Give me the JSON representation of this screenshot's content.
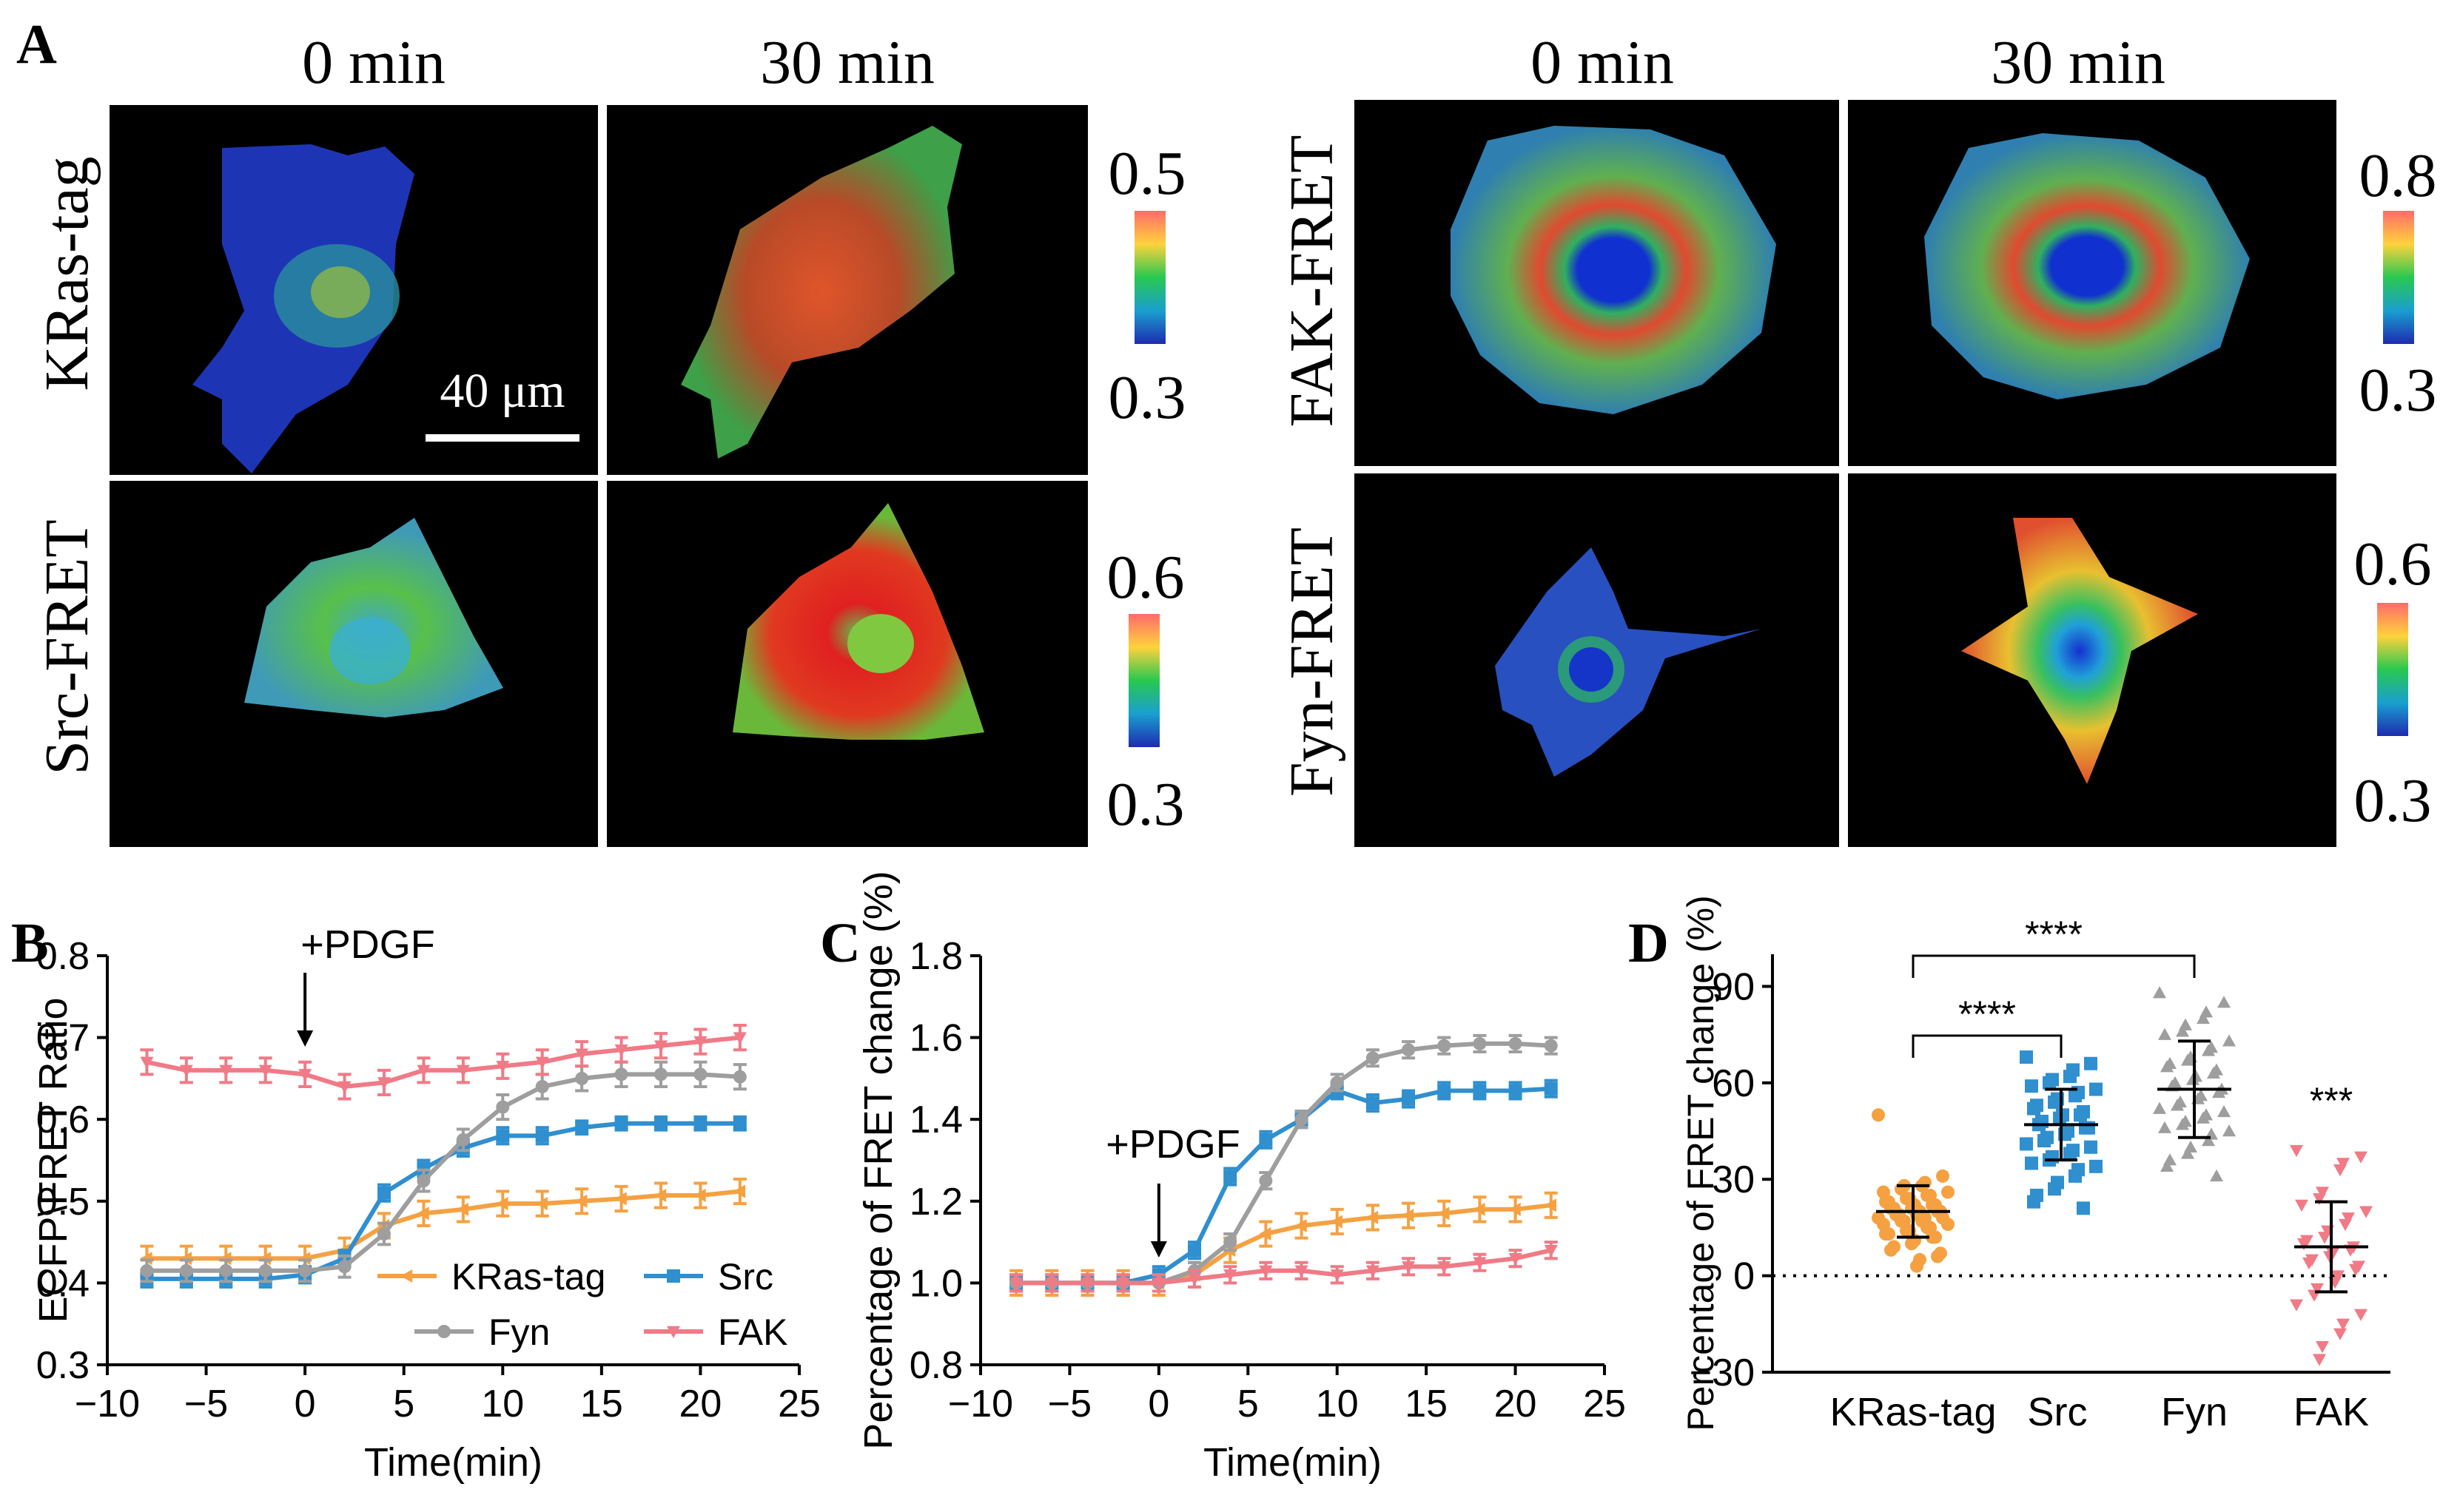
{
  "panel_labels": {
    "a": "A",
    "b": "B",
    "c": "C",
    "d": "D"
  },
  "panel_a": {
    "left_group": {
      "time_labels": [
        "0 min",
        "30 min"
      ],
      "rows": [
        {
          "label": "KRas-tag",
          "scale_max": "0.5",
          "scale_min": "0.3"
        },
        {
          "label": "Src-FRET",
          "scale_max": "0.6",
          "scale_min": "0.3"
        }
      ],
      "scale_bar_label": "40 μm"
    },
    "right_group": {
      "time_labels": [
        "0 min",
        "30 min"
      ],
      "rows": [
        {
          "label": "FAK-FRET",
          "scale_max": "0.8",
          "scale_min": "0.3"
        },
        {
          "label": "Fyn-FRET",
          "scale_max": "0.6",
          "scale_min": "0.3"
        }
      ]
    },
    "colormap": [
      "#ff6b6b",
      "#ffd23c",
      "#28c850",
      "#1a9fd0",
      "#1d2bb0"
    ]
  },
  "chart_data": [
    {
      "id": "B",
      "type": "line",
      "title": "",
      "xlabel": "Time(min)",
      "ylabel": "ECFP\\FRET Ratio",
      "xlim": [
        -10,
        25
      ],
      "ylim": [
        0.3,
        0.8
      ],
      "xticks": [
        -10,
        -5,
        0,
        5,
        10,
        15,
        20,
        25
      ],
      "xtick_labels": [
        "−10",
        "−5",
        "0",
        "5",
        "10",
        "15",
        "20",
        "25"
      ],
      "yticks": [
        0.3,
        0.4,
        0.5,
        0.6,
        0.7,
        0.8
      ],
      "ytick_labels": [
        "0.3",
        "0.4",
        "0.5",
        "0.6",
        "0.7",
        "0.8"
      ],
      "annotation": {
        "text": "+PDGF",
        "x": 0
      },
      "x": [
        -8,
        -6,
        -4,
        -2,
        0,
        2,
        4,
        6,
        8,
        10,
        12,
        14,
        16,
        18,
        20,
        22
      ],
      "series": [
        {
          "name": "KRas-tag",
          "color": "#f5a142",
          "marker": "tri-left",
          "values": [
            0.43,
            0.43,
            0.43,
            0.43,
            0.43,
            0.44,
            0.47,
            0.485,
            0.49,
            0.497,
            0.497,
            0.5,
            0.503,
            0.507,
            0.507,
            0.512
          ],
          "errors": [
            0.015,
            0.015,
            0.015,
            0.015,
            0.015,
            0.015,
            0.015,
            0.015,
            0.015,
            0.015,
            0.015,
            0.015,
            0.015,
            0.015,
            0.015,
            0.015
          ]
        },
        {
          "name": "Src",
          "color": "#2f8fcf",
          "marker": "square",
          "values": [
            0.405,
            0.405,
            0.405,
            0.405,
            0.41,
            0.43,
            0.51,
            0.54,
            0.565,
            0.58,
            0.58,
            0.59,
            0.595,
            0.595,
            0.595,
            0.595
          ],
          "errors": [
            0.01,
            0.01,
            0.01,
            0.01,
            0.01,
            0.01,
            0.01,
            0.01,
            0.01,
            0.01,
            0.01,
            0.008,
            0.008,
            0.008,
            0.008,
            0.008
          ]
        },
        {
          "name": "Fyn",
          "color": "#9e9e9e",
          "marker": "circle",
          "values": [
            0.415,
            0.415,
            0.415,
            0.415,
            0.415,
            0.42,
            0.46,
            0.525,
            0.575,
            0.615,
            0.64,
            0.65,
            0.655,
            0.655,
            0.655,
            0.652
          ],
          "errors": [
            0.013,
            0.013,
            0.013,
            0.013,
            0.013,
            0.013,
            0.013,
            0.013,
            0.013,
            0.015,
            0.015,
            0.015,
            0.015,
            0.015,
            0.015,
            0.015
          ]
        },
        {
          "name": "FAK",
          "color": "#f07a86",
          "marker": "tri-down",
          "values": [
            0.67,
            0.66,
            0.66,
            0.66,
            0.655,
            0.64,
            0.645,
            0.66,
            0.66,
            0.665,
            0.67,
            0.68,
            0.685,
            0.69,
            0.695,
            0.7
          ],
          "errors": [
            0.015,
            0.015,
            0.015,
            0.015,
            0.015,
            0.015,
            0.015,
            0.015,
            0.015,
            0.015,
            0.015,
            0.015,
            0.015,
            0.015,
            0.015,
            0.015
          ]
        }
      ],
      "legend": {
        "placement": "bottom-right",
        "order": [
          "KRas-tag",
          "Src",
          "Fyn",
          "FAK"
        ]
      }
    },
    {
      "id": "C",
      "type": "line",
      "title": "",
      "xlabel": "Time(min)",
      "ylabel": "Percentage of FRET change (%)",
      "xlim": [
        -10,
        25
      ],
      "ylim": [
        0.8,
        1.8
      ],
      "xticks": [
        -10,
        -5,
        0,
        5,
        10,
        15,
        20,
        25
      ],
      "xtick_labels": [
        "−10",
        "−5",
        "0",
        "5",
        "10",
        "15",
        "20",
        "25"
      ],
      "yticks": [
        0.8,
        1.0,
        1.2,
        1.4,
        1.6,
        1.8
      ],
      "ytick_labels": [
        "0.8",
        "1.0",
        "1.2",
        "1.4",
        "1.6",
        "1.8"
      ],
      "annotation": {
        "text": "+PDGF",
        "x": 0
      },
      "x": [
        -8,
        -6,
        -4,
        -2,
        0,
        2,
        4,
        6,
        8,
        10,
        12,
        14,
        16,
        18,
        20,
        22
      ],
      "series": [
        {
          "name": "KRas-tag",
          "color": "#f5a142",
          "marker": "tri-left",
          "values": [
            1.0,
            1.0,
            1.0,
            1.0,
            1.0,
            1.02,
            1.08,
            1.12,
            1.14,
            1.15,
            1.16,
            1.165,
            1.17,
            1.18,
            1.18,
            1.19
          ],
          "errors": [
            0.03,
            0.03,
            0.03,
            0.03,
            0.03,
            0.03,
            0.03,
            0.03,
            0.03,
            0.03,
            0.03,
            0.03,
            0.03,
            0.03,
            0.03,
            0.03
          ]
        },
        {
          "name": "Src",
          "color": "#2f8fcf",
          "marker": "square",
          "values": [
            1.0,
            1.0,
            1.0,
            1.0,
            1.02,
            1.08,
            1.26,
            1.35,
            1.4,
            1.47,
            1.44,
            1.45,
            1.47,
            1.47,
            1.47,
            1.475
          ],
          "errors": [
            0.02,
            0.02,
            0.02,
            0.02,
            0.02,
            0.02,
            0.02,
            0.02,
            0.02,
            0.02,
            0.02,
            0.02,
            0.02,
            0.02,
            0.02,
            0.02
          ]
        },
        {
          "name": "Fyn",
          "color": "#9e9e9e",
          "marker": "circle",
          "values": [
            1.0,
            1.0,
            1.0,
            1.0,
            1.0,
            1.03,
            1.1,
            1.25,
            1.4,
            1.49,
            1.55,
            1.57,
            1.58,
            1.585,
            1.585,
            1.58
          ],
          "errors": [
            0.02,
            0.02,
            0.02,
            0.02,
            0.02,
            0.02,
            0.02,
            0.02,
            0.02,
            0.02,
            0.02,
            0.02,
            0.02,
            0.02,
            0.02,
            0.02
          ]
        },
        {
          "name": "FAK",
          "color": "#f07a86",
          "marker": "tri-down",
          "values": [
            1.0,
            1.0,
            1.0,
            1.0,
            1.0,
            1.01,
            1.02,
            1.03,
            1.03,
            1.02,
            1.03,
            1.04,
            1.04,
            1.05,
            1.06,
            1.08
          ],
          "errors": [
            0.02,
            0.02,
            0.02,
            0.02,
            0.02,
            0.02,
            0.02,
            0.02,
            0.02,
            0.02,
            0.02,
            0.02,
            0.02,
            0.02,
            0.02,
            0.02
          ]
        }
      ]
    },
    {
      "id": "D",
      "type": "scatter",
      "title": "",
      "xlabel": "",
      "ylabel": "Percentage of FRET change (%)",
      "categories": [
        "KRas-tag",
        "Src",
        "Fyn",
        "FAK"
      ],
      "ylim": [
        -30,
        100
      ],
      "yticks": [
        -30,
        0,
        30,
        60,
        90
      ],
      "ytick_labels": [
        "−30",
        "0",
        "30",
        "60",
        "90"
      ],
      "reference_line": 0,
      "groups": [
        {
          "name": "KRas-tag",
          "color": "#f5a142",
          "marker": "circle",
          "mean": 20,
          "sd": 8,
          "points": [
            50,
            31,
            29,
            28,
            28,
            27,
            26,
            26,
            25,
            25,
            24,
            24,
            23,
            23,
            22,
            22,
            22,
            21,
            21,
            21,
            20,
            20,
            20,
            19,
            19,
            19,
            18,
            18,
            18,
            17,
            17,
            17,
            16,
            16,
            15,
            15,
            14,
            14,
            13,
            13,
            12,
            12,
            11,
            10,
            9,
            8,
            7,
            6,
            5,
            3
          ]
        },
        {
          "name": "Src",
          "color": "#2f8fcf",
          "marker": "square",
          "mean": 47,
          "sd": 11,
          "points": [
            68,
            66,
            64,
            62,
            61,
            60,
            59,
            58,
            57,
            56,
            55,
            54,
            53,
            52,
            51,
            50,
            50,
            49,
            48,
            47,
            46,
            46,
            45,
            44,
            43,
            42,
            41,
            40,
            39,
            38,
            37,
            36,
            35,
            34,
            33,
            31,
            29,
            27,
            25,
            23,
            21
          ]
        },
        {
          "name": "Fyn",
          "color": "#9e9e9e",
          "marker": "tri-up",
          "mean": 58,
          "sd": 15,
          "points": [
            88,
            85,
            82,
            80,
            78,
            76,
            75,
            73,
            71,
            70,
            68,
            67,
            66,
            65,
            64,
            63,
            62,
            61,
            60,
            59,
            58,
            57,
            56,
            55,
            54,
            53,
            52,
            51,
            50,
            49,
            48,
            47,
            46,
            45,
            44,
            42,
            40,
            38,
            36,
            34,
            31
          ]
        },
        {
          "name": "FAK",
          "color": "#f07a86",
          "marker": "tri-down",
          "mean": 9,
          "sd": 14,
          "points": [
            39,
            37,
            35,
            33,
            26,
            24,
            22,
            20,
            18,
            16,
            14,
            12,
            11,
            10,
            9,
            8,
            7,
            6,
            5,
            4,
            3,
            2,
            0,
            -2,
            -4,
            -6,
            -9,
            -12,
            -15,
            -18,
            -22,
            -26
          ]
        }
      ],
      "significance": [
        {
          "from": "KRas-tag",
          "to": "Src",
          "label": "****"
        },
        {
          "from": "KRas-tag",
          "to": "Fyn",
          "label": "****"
        },
        {
          "at": "FAK",
          "label": "***"
        }
      ]
    }
  ]
}
